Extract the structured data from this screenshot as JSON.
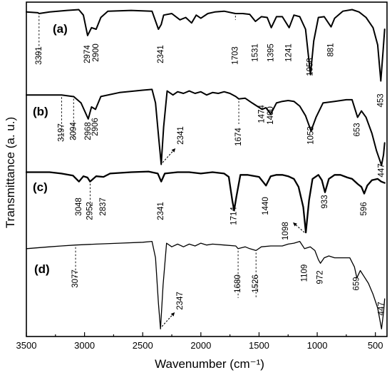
{
  "chart_data": {
    "type": "line",
    "title": "",
    "xlabel": "Wavenumber (cm⁻¹)",
    "ylabel": "Transmittance (a. u.)",
    "xlim": [
      3500,
      400
    ],
    "x_ticks": [
      3500,
      3000,
      2500,
      2000,
      1500,
      1000,
      500
    ],
    "y_ticks": "none",
    "grid": false,
    "legend": "none",
    "series": [
      {
        "name": "(a)",
        "points": [
          [
            3500,
            0.92
          ],
          [
            3400,
            0.91
          ],
          [
            3391,
            0.9
          ],
          [
            3300,
            0.92
          ],
          [
            3150,
            0.94
          ],
          [
            3050,
            0.95
          ],
          [
            3010,
            0.88
          ],
          [
            2974,
            0.62
          ],
          [
            2940,
            0.72
          ],
          [
            2900,
            0.7
          ],
          [
            2860,
            0.85
          ],
          [
            2800,
            0.93
          ],
          [
            2600,
            0.94
          ],
          [
            2420,
            0.93
          ],
          [
            2365,
            0.7
          ],
          [
            2341,
            0.76
          ],
          [
            2320,
            0.88
          ],
          [
            2250,
            0.9
          ],
          [
            2180,
            0.82
          ],
          [
            2130,
            0.85
          ],
          [
            2080,
            0.78
          ],
          [
            2040,
            0.88
          ],
          [
            2000,
            0.84
          ],
          [
            1940,
            0.9
          ],
          [
            1880,
            0.92
          ],
          [
            1800,
            0.93
          ],
          [
            1703,
            0.9
          ],
          [
            1640,
            0.9
          ],
          [
            1580,
            0.89
          ],
          [
            1531,
            0.8
          ],
          [
            1480,
            0.86
          ],
          [
            1430,
            0.85
          ],
          [
            1395,
            0.72
          ],
          [
            1350,
            0.86
          ],
          [
            1300,
            0.86
          ],
          [
            1241,
            0.72
          ],
          [
            1200,
            0.88
          ],
          [
            1150,
            0.86
          ],
          [
            1100,
            0.7
          ],
          [
            1058,
            0.12
          ],
          [
            1030,
            0.55
          ],
          [
            990,
            0.85
          ],
          [
            940,
            0.86
          ],
          [
            881,
            0.73
          ],
          [
            850,
            0.84
          ],
          [
            780,
            0.93
          ],
          [
            700,
            0.95
          ],
          [
            640,
            0.92
          ],
          [
            580,
            0.85
          ],
          [
            520,
            0.72
          ],
          [
            480,
            0.5
          ],
          [
            453,
            0.04
          ],
          [
            435,
            0.4
          ],
          [
            420,
            0.7
          ]
        ]
      },
      {
        "name": "(b)",
        "points": [
          [
            3500,
            0.9
          ],
          [
            3400,
            0.9
          ],
          [
            3300,
            0.9
          ],
          [
            3197,
            0.9
          ],
          [
            3100,
            0.88
          ],
          [
            3094,
            0.88
          ],
          [
            3030,
            0.8
          ],
          [
            2968,
            0.6
          ],
          [
            2940,
            0.75
          ],
          [
            2906,
            0.72
          ],
          [
            2860,
            0.88
          ],
          [
            2700,
            0.93
          ],
          [
            2500,
            0.96
          ],
          [
            2420,
            0.97
          ],
          [
            2390,
            0.8
          ],
          [
            2362,
            0.35
          ],
          [
            2341,
            0.03
          ],
          [
            2320,
            0.5
          ],
          [
            2290,
            0.95
          ],
          [
            2240,
            0.9
          ],
          [
            2200,
            0.94
          ],
          [
            2150,
            0.92
          ],
          [
            2100,
            0.95
          ],
          [
            2050,
            0.92
          ],
          [
            2000,
            0.94
          ],
          [
            1950,
            0.9
          ],
          [
            1900,
            0.93
          ],
          [
            1850,
            0.92
          ],
          [
            1800,
            0.94
          ],
          [
            1750,
            0.92
          ],
          [
            1700,
            0.88
          ],
          [
            1674,
            0.85
          ],
          [
            1620,
            0.86
          ],
          [
            1560,
            0.8
          ],
          [
            1474,
            0.72
          ],
          [
            1440,
            0.74
          ],
          [
            1400,
            0.66
          ],
          [
            1350,
            0.8
          ],
          [
            1300,
            0.82
          ],
          [
            1250,
            0.83
          ],
          [
            1200,
            0.82
          ],
          [
            1150,
            0.76
          ],
          [
            1100,
            0.64
          ],
          [
            1053,
            0.45
          ],
          [
            1010,
            0.62
          ],
          [
            950,
            0.8
          ],
          [
            850,
            0.82
          ],
          [
            750,
            0.84
          ],
          [
            700,
            0.84
          ],
          [
            653,
            0.62
          ],
          [
            620,
            0.7
          ],
          [
            580,
            0.62
          ],
          [
            530,
            0.42
          ],
          [
            490,
            0.2
          ],
          [
            447,
            0.02
          ],
          [
            430,
            0.15
          ],
          [
            420,
            0.3
          ]
        ]
      },
      {
        "name": "(c)",
        "points": [
          [
            3500,
            0.92
          ],
          [
            3300,
            0.92
          ],
          [
            3200,
            0.9
          ],
          [
            3100,
            0.87
          ],
          [
            3048,
            0.78
          ],
          [
            3010,
            0.86
          ],
          [
            2975,
            0.84
          ],
          [
            2952,
            0.78
          ],
          [
            2900,
            0.86
          ],
          [
            2837,
            0.85
          ],
          [
            2780,
            0.9
          ],
          [
            2600,
            0.92
          ],
          [
            2450,
            0.93
          ],
          [
            2370,
            0.9
          ],
          [
            2341,
            0.78
          ],
          [
            2310,
            0.9
          ],
          [
            2200,
            0.92
          ],
          [
            2100,
            0.92
          ],
          [
            2000,
            0.9
          ],
          [
            1900,
            0.92
          ],
          [
            1800,
            0.9
          ],
          [
            1760,
            0.85
          ],
          [
            1730,
            0.5
          ],
          [
            1714,
            0.35
          ],
          [
            1695,
            0.55
          ],
          [
            1660,
            0.88
          ],
          [
            1600,
            0.88
          ],
          [
            1500,
            0.85
          ],
          [
            1440,
            0.72
          ],
          [
            1400,
            0.86
          ],
          [
            1350,
            0.88
          ],
          [
            1300,
            0.88
          ],
          [
            1250,
            0.86
          ],
          [
            1200,
            0.82
          ],
          [
            1160,
            0.7
          ],
          [
            1120,
            0.4
          ],
          [
            1098,
            0.02
          ],
          [
            1070,
            0.5
          ],
          [
            1040,
            0.82
          ],
          [
            990,
            0.88
          ],
          [
            960,
            0.8
          ],
          [
            933,
            0.62
          ],
          [
            900,
            0.82
          ],
          [
            850,
            0.88
          ],
          [
            800,
            0.88
          ],
          [
            740,
            0.84
          ],
          [
            700,
            0.82
          ],
          [
            650,
            0.74
          ],
          [
            620,
            0.7
          ],
          [
            596,
            0.6
          ],
          [
            570,
            0.72
          ],
          [
            530,
            0.8
          ],
          [
            480,
            0.82
          ],
          [
            450,
            0.78
          ],
          [
            420,
            0.76
          ]
        ]
      },
      {
        "name": "(d)",
        "points": [
          [
            3500,
            0.9
          ],
          [
            3300,
            0.92
          ],
          [
            3200,
            0.93
          ],
          [
            3077,
            0.94
          ],
          [
            2900,
            0.95
          ],
          [
            2700,
            0.96
          ],
          [
            2500,
            0.97
          ],
          [
            2420,
            0.98
          ],
          [
            2390,
            0.8
          ],
          [
            2365,
            0.3
          ],
          [
            2347,
            0.02
          ],
          [
            2325,
            0.5
          ],
          [
            2295,
            0.96
          ],
          [
            2250,
            0.92
          ],
          [
            2200,
            0.95
          ],
          [
            2150,
            0.92
          ],
          [
            2100,
            0.95
          ],
          [
            2050,
            0.93
          ],
          [
            2000,
            0.96
          ],
          [
            1950,
            0.94
          ],
          [
            1900,
            0.95
          ],
          [
            1800,
            0.94
          ],
          [
            1700,
            0.93
          ],
          [
            1680,
            0.9
          ],
          [
            1620,
            0.92
          ],
          [
            1580,
            0.9
          ],
          [
            1526,
            0.88
          ],
          [
            1480,
            0.92
          ],
          [
            1400,
            0.93
          ],
          [
            1300,
            0.93
          ],
          [
            1250,
            0.95
          ],
          [
            1200,
            0.96
          ],
          [
            1150,
            0.98
          ],
          [
            1109,
            0.9
          ],
          [
            1060,
            0.92
          ],
          [
            1020,
            0.88
          ],
          [
            990,
            0.78
          ],
          [
            972,
            0.74
          ],
          [
            940,
            0.8
          ],
          [
            900,
            0.82
          ],
          [
            850,
            0.8
          ],
          [
            780,
            0.8
          ],
          [
            720,
            0.8
          ],
          [
            680,
            0.7
          ],
          [
            659,
            0.58
          ],
          [
            630,
            0.66
          ],
          [
            600,
            0.6
          ],
          [
            560,
            0.52
          ],
          [
            520,
            0.4
          ],
          [
            480,
            0.25
          ],
          [
            447,
            0.02
          ],
          [
            430,
            0.2
          ],
          [
            420,
            0.35
          ]
        ]
      }
    ],
    "peak_labels": {
      "a": [
        "3391",
        "2974",
        "2900",
        "2341",
        "1703",
        "1531",
        "1395",
        "1241",
        "1058",
        "881",
        "453"
      ],
      "b": [
        "3197",
        "3094",
        "2968",
        "2906",
        "2341",
        "1674",
        "1474",
        "1400",
        "1053",
        "653",
        "447"
      ],
      "c": [
        "3048",
        "2952",
        "2837",
        "2341",
        "1714",
        "1440",
        "1098",
        "933",
        "596"
      ],
      "d": [
        "3077",
        "2347",
        "1680",
        "1526",
        "1109",
        "972",
        "659",
        "447"
      ]
    },
    "panel_labels": [
      "(a)",
      "(b)",
      "(c)",
      "(d)"
    ]
  }
}
